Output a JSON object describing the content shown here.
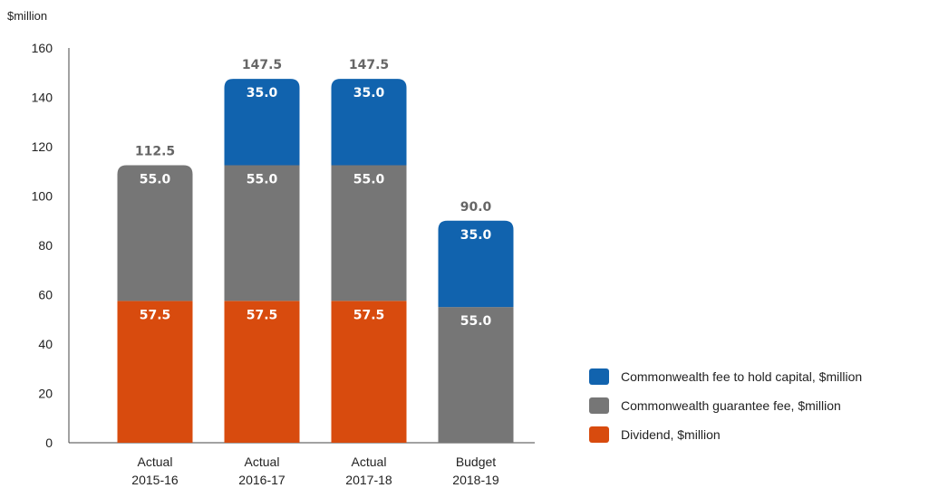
{
  "chart_data": {
    "type": "bar",
    "stacked": true,
    "y_unit_label": "$million",
    "ylim": [
      0,
      160
    ],
    "yticks": [
      0,
      20,
      40,
      60,
      80,
      100,
      120,
      140,
      160
    ],
    "categories": [
      [
        "Actual",
        "2015-16"
      ],
      [
        "Actual",
        "2016-17"
      ],
      [
        "Actual",
        "2017-18"
      ],
      [
        "Budget",
        "2018-19"
      ]
    ],
    "series": [
      {
        "name": "Dividend, $million",
        "color": "#D84B0E",
        "values": [
          57.5,
          57.5,
          57.5,
          0
        ],
        "labels": [
          "57.5",
          "57.5",
          "57.5",
          ""
        ]
      },
      {
        "name": "Commonwealth guarantee fee, $million",
        "color": "#767676",
        "values": [
          55.0,
          55.0,
          55.0,
          55.0
        ],
        "labels": [
          "55.0",
          "55.0",
          "55.0",
          "55.0"
        ]
      },
      {
        "name": "Commonwealth fee to hold capital, $million",
        "color": "#1163AE",
        "values": [
          0,
          35.0,
          35.0,
          35.0
        ],
        "labels": [
          "",
          "35.0",
          "35.0",
          "35.0"
        ]
      }
    ],
    "totals": [
      "112.5",
      "147.5",
      "147.5",
      "90.0"
    ],
    "grid": false,
    "legend_position": "bottom-right",
    "legend_order": [
      2,
      1,
      0
    ]
  }
}
